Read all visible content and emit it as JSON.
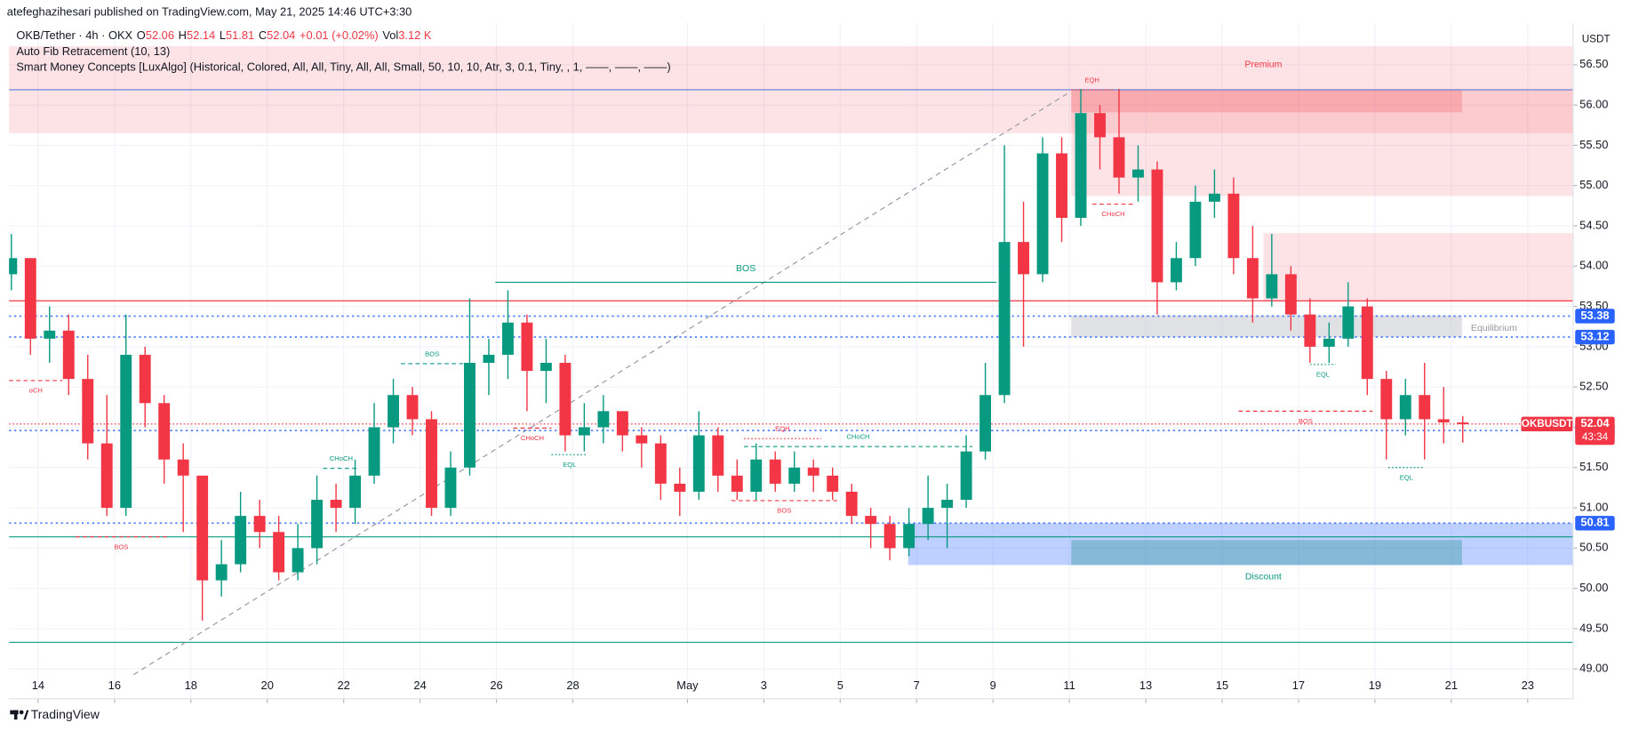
{
  "header": {
    "published": "atefeghazihesari published on TradingView.com, May 21, 2025 14:46 UTC+3:30",
    "symbol": "OKB/Tether · 4h · OKX",
    "ohlc_labels": [
      "O",
      "H",
      "L",
      "C"
    ],
    "change": "+0.01 (+0.02%)",
    "volume_label": "Vol",
    "volume": "3.12 K",
    "indicators": [
      "Auto Fib Retracement (10, 13)",
      "Smart Money Concepts [LuxAlgo] (Historical, Colored, All, All, Tiny, All, All, Small, 50, 10, 10, Atr, 3, 0.1, Tiny, , 1, ——, ——, ——)"
    ]
  },
  "chart_data": {
    "type": "candlestick",
    "currency": "USDT",
    "ticker": "OKBUSDT",
    "countdown": "43:34",
    "up_color": "#089981",
    "down_color": "#f23645",
    "grid": true,
    "xlim": [
      13.238,
      54.19
    ],
    "ylim": [
      48.63,
      57.02
    ],
    "xticks": [
      14,
      16,
      18,
      20,
      22,
      24,
      26,
      28,
      {
        "value": 31,
        "label": "May"
      },
      {
        "value": 33,
        "label": "3"
      },
      {
        "value": 35,
        "label": "5"
      },
      {
        "value": 37,
        "label": "7"
      },
      {
        "value": 39,
        "label": "9"
      },
      {
        "value": 41,
        "label": "11"
      },
      {
        "value": 43,
        "label": "13"
      },
      {
        "value": 45,
        "label": "15"
      },
      {
        "value": 47,
        "label": "17"
      },
      {
        "value": 49,
        "label": "19"
      },
      {
        "value": 51,
        "label": "21"
      },
      {
        "value": 53,
        "label": "23"
      }
    ],
    "yticks": [
      {
        "value": 49,
        "label": "49.00"
      },
      {
        "value": 49.5,
        "label": "49.50"
      },
      {
        "value": 50,
        "label": "50.00"
      },
      {
        "value": 50.5,
        "label": "50.50"
      },
      {
        "value": 51,
        "label": "51.00"
      },
      {
        "value": 51.5,
        "label": "51.50"
      },
      {
        "value": 52,
        "label": "52.00"
      },
      {
        "value": 52.5,
        "label": "52.50"
      },
      {
        "value": 53,
        "label": "53.00"
      },
      {
        "value": 53.5,
        "label": "53.50"
      },
      {
        "value": 54,
        "label": "54.00"
      },
      {
        "value": 54.5,
        "label": "54.50"
      },
      {
        "value": 55,
        "label": "55.00"
      },
      {
        "value": 55.5,
        "label": "55.50"
      },
      {
        "value": 56,
        "label": "56.00"
      },
      {
        "value": 56.5,
        "label": "56.50"
      }
    ],
    "candles": {
      "x": [
        13.3,
        13.8,
        14.3,
        14.8,
        15.3,
        15.8,
        16.3,
        16.8,
        17.3,
        17.8,
        18.3,
        18.8,
        19.3,
        19.8,
        20.3,
        20.8,
        21.3,
        21.8,
        22.3,
        22.8,
        23.3,
        23.8,
        24.3,
        24.8,
        25.3,
        25.8,
        26.3,
        26.8,
        27.3,
        27.8,
        28.3,
        28.8,
        29.3,
        29.8,
        30.3,
        30.8,
        31.3,
        31.8,
        32.3,
        32.8,
        33.3,
        33.8,
        34.3,
        34.8,
        35.3,
        35.8,
        36.3,
        36.8,
        37.3,
        37.8,
        38.3,
        38.8,
        39.3,
        39.8,
        40.3,
        40.8,
        41.3,
        41.8,
        42.3,
        42.8,
        43.3,
        43.8,
        44.3,
        44.8,
        45.3,
        45.8,
        46.3,
        46.8,
        47.3,
        47.8,
        48.3,
        48.8,
        49.3,
        49.8,
        50.3,
        50.8,
        51.3
      ],
      "open": [
        53.9,
        54.1,
        53.1,
        53.2,
        52.6,
        51.8,
        51.0,
        52.9,
        52.3,
        51.6,
        51.4,
        50.1,
        50.3,
        50.9,
        50.7,
        50.2,
        50.5,
        51.1,
        51.0,
        51.4,
        52.0,
        52.4,
        52.1,
        51.0,
        51.5,
        52.8,
        52.9,
        53.3,
        52.7,
        52.8,
        51.9,
        52.0,
        52.2,
        51.9,
        51.8,
        51.3,
        51.2,
        51.9,
        51.4,
        51.2,
        51.6,
        51.3,
        51.5,
        51.4,
        51.2,
        50.9,
        50.8,
        50.5,
        50.8,
        51.0,
        51.1,
        51.7,
        52.4,
        54.3,
        53.9,
        55.4,
        54.6,
        55.9,
        55.6,
        55.1,
        55.2,
        53.8,
        54.1,
        54.8,
        54.9,
        54.1,
        53.6,
        53.9,
        53.4,
        53.0,
        53.1,
        53.5,
        52.6,
        52.1,
        52.4,
        52.1,
        52.06
      ],
      "high": [
        54.4,
        54.1,
        53.5,
        53.4,
        52.9,
        52.4,
        53.4,
        53.0,
        52.4,
        51.8,
        51.4,
        50.6,
        51.2,
        51.1,
        50.9,
        50.8,
        51.4,
        51.3,
        51.6,
        52.3,
        52.6,
        52.5,
        52.2,
        51.7,
        53.6,
        53.1,
        53.7,
        53.4,
        53.1,
        52.9,
        52.3,
        52.4,
        52.2,
        52.0,
        51.9,
        51.5,
        52.2,
        52.0,
        51.6,
        51.8,
        51.7,
        51.7,
        51.6,
        51.5,
        51.3,
        51.0,
        50.9,
        51.0,
        51.4,
        51.3,
        51.9,
        52.8,
        55.5,
        54.8,
        55.6,
        55.6,
        56.2,
        56.0,
        56.2,
        55.5,
        55.3,
        54.3,
        55.0,
        55.2,
        55.1,
        54.5,
        54.4,
        54.0,
        53.6,
        53.3,
        53.8,
        53.6,
        52.7,
        52.6,
        52.8,
        52.5,
        52.14
      ],
      "low": [
        53.7,
        52.9,
        52.8,
        52.4,
        51.6,
        50.9,
        50.9,
        52.0,
        51.3,
        50.7,
        49.6,
        49.9,
        50.2,
        50.5,
        50.1,
        50.1,
        50.3,
        50.7,
        50.8,
        51.3,
        51.8,
        51.9,
        50.9,
        50.9,
        51.4,
        52.4,
        52.6,
        52.2,
        52.3,
        51.7,
        51.7,
        51.8,
        51.7,
        51.5,
        51.1,
        50.9,
        51.1,
        51.2,
        51.1,
        51.1,
        51.2,
        51.2,
        51.2,
        51.1,
        50.8,
        50.5,
        50.35,
        50.4,
        50.6,
        50.5,
        51.0,
        51.6,
        52.3,
        53.0,
        53.8,
        54.3,
        54.5,
        55.2,
        54.9,
        54.8,
        53.4,
        53.7,
        54.0,
        54.6,
        53.9,
        53.3,
        53.5,
        53.2,
        52.8,
        52.8,
        53.0,
        52.4,
        51.6,
        51.9,
        51.6,
        51.8,
        51.81
      ],
      "close": [
        54.1,
        53.1,
        53.2,
        52.6,
        51.8,
        51.0,
        52.9,
        52.3,
        51.6,
        51.4,
        50.1,
        50.3,
        50.9,
        50.7,
        50.2,
        50.5,
        51.1,
        51.0,
        51.4,
        52.0,
        52.4,
        52.1,
        51.0,
        51.5,
        52.8,
        52.9,
        53.3,
        52.7,
        52.8,
        51.9,
        52.0,
        52.2,
        51.9,
        51.8,
        51.3,
        51.2,
        51.9,
        51.4,
        51.2,
        51.6,
        51.3,
        51.5,
        51.4,
        51.2,
        50.9,
        50.8,
        50.5,
        50.8,
        51.0,
        51.1,
        51.7,
        52.4,
        54.3,
        53.9,
        55.4,
        54.6,
        55.9,
        55.6,
        55.1,
        55.2,
        53.8,
        54.1,
        54.8,
        54.9,
        54.1,
        53.6,
        53.9,
        53.4,
        53.0,
        53.1,
        53.5,
        52.6,
        52.1,
        52.4,
        52.1,
        52.06,
        52.04
      ]
    },
    "zones": [
      {
        "x": [
          13.238,
          54.19
        ],
        "y": [
          55.65,
          56.73
        ],
        "color": "#f23645",
        "opacity": 0.14
      },
      {
        "x": [
          41.05,
          54.19
        ],
        "y": [
          54.87,
          56.19
        ],
        "color": "#f23645",
        "opacity": 0.14
      },
      {
        "x": [
          41.05,
          51.28
        ],
        "y": [
          55.91,
          56.19
        ],
        "color": "#f23645",
        "opacity": 0.22
      },
      {
        "x": [
          46.08,
          54.19
        ],
        "y": [
          53.56,
          54.41
        ],
        "color": "#f23645",
        "opacity": 0.14
      },
      {
        "x": [
          41.05,
          51.28
        ],
        "y": [
          53.12,
          53.39
        ],
        "color": "#b2b5be",
        "opacity": 0.4
      },
      {
        "x": [
          36.78,
          54.19
        ],
        "y": [
          50.29,
          50.81
        ],
        "color": "#2962ff",
        "opacity": 0.3
      },
      {
        "x": [
          41.05,
          51.28
        ],
        "y": [
          50.29,
          50.6
        ],
        "color": "#4d9fb0",
        "opacity": 0.5
      }
    ],
    "zone_labels": [
      {
        "text": "Premium",
        "x": 46.08,
        "y": 56.5,
        "color": "#f23645"
      },
      {
        "text": "Equilibrium",
        "x": 52.12,
        "y": 53.23,
        "color": "#9598a1"
      },
      {
        "text": "Discount",
        "x": 46.08,
        "y": 50.14,
        "color": "#089981"
      }
    ],
    "lines": [
      {
        "value": 56.19,
        "color": "#5b7bd5"
      },
      {
        "value": 53.57,
        "color": "#f23645"
      },
      {
        "value": 50.64,
        "color": "#089981"
      },
      {
        "value": 49.33,
        "color": "#089981"
      }
    ],
    "trend_line": {
      "x": [
        16.5,
        40.94
      ],
      "y": [
        48.93,
        56.14
      ],
      "color": "#9598a1"
    },
    "structures": [
      {
        "label": "BOS",
        "color": "#089981",
        "style": "solid",
        "x": [
          25.97,
          39.09
        ],
        "y": 53.8
      },
      {
        "label": "BOS",
        "color": "#f23645",
        "style": "dashed",
        "x": [
          14.98,
          17.37
        ],
        "y": 50.64
      },
      {
        "label": "oCH",
        "color": "#f23645",
        "style": "dashed",
        "x": [
          13.238,
          14.64
        ],
        "y": 52.58
      },
      {
        "label": "CHoCH",
        "color": "#089981",
        "style": "dashed",
        "x": [
          21.46,
          22.41
        ],
        "y": 51.49
      },
      {
        "label": "BOS",
        "color": "#089981",
        "style": "dashed",
        "x": [
          23.5,
          25.13
        ],
        "y": 52.79
      },
      {
        "label": "CHoCH",
        "color": "#f23645",
        "style": "dashed",
        "x": [
          26.44,
          27.44
        ],
        "y": 51.99
      },
      {
        "label": "EQL",
        "color": "#089981",
        "style": "dotted",
        "x": [
          27.44,
          28.39
        ],
        "y": 51.66
      },
      {
        "label": "CHoCH",
        "color": "#089981",
        "style": "dashed",
        "x": [
          32.48,
          38.46
        ],
        "y": 51.76
      },
      {
        "label": "EQH",
        "color": "#f23645",
        "style": "dotted",
        "x": [
          32.48,
          34.5
        ],
        "y": 51.86
      },
      {
        "label": "BOS",
        "color": "#f23645",
        "style": "dashed",
        "x": [
          32.15,
          34.92
        ],
        "y": 51.09
      },
      {
        "label": "EQH",
        "color": "#f23645",
        "style": "dotted",
        "x": [
          41.05,
          42.14
        ],
        "y": 56.19
      },
      {
        "label": "CHoCH",
        "color": "#f23645",
        "style": "dashed",
        "x": [
          41.6,
          42.7
        ],
        "y": 54.77
      },
      {
        "label": "BOS",
        "color": "#f23645",
        "style": "dashed",
        "x": [
          45.43,
          48.94
        ],
        "y": 52.2
      },
      {
        "label": "EQL",
        "color": "#089981",
        "style": "dotted",
        "x": [
          47.3,
          47.98
        ],
        "y": 52.78
      },
      {
        "label": "EQL",
        "color": "#089981",
        "style": "dotted",
        "x": [
          49.35,
          50.3
        ],
        "y": 51.5
      }
    ],
    "price_tags": [
      {
        "value": 53.38,
        "color": "#2962ff"
      },
      {
        "value": 53.12,
        "color": "#2962ff"
      },
      {
        "value": 50.81,
        "color": "#2962ff"
      },
      {
        "value": 51.96,
        "color": "#2962ff"
      }
    ]
  },
  "footer": {
    "brand": "TradingView"
  }
}
